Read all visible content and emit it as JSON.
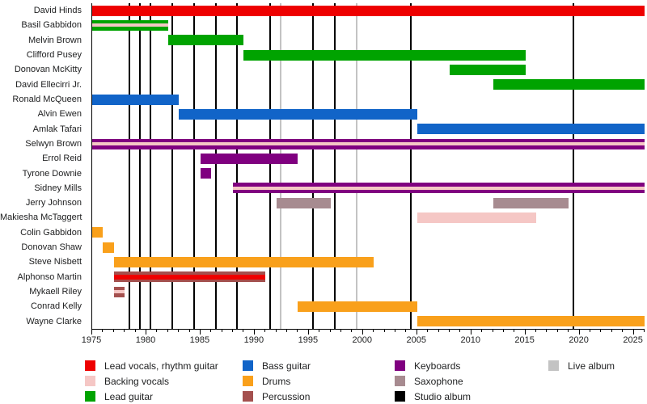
{
  "chart_data": {
    "type": "timeline",
    "description": "Band members timeline: colored bars show each member's tenure by instrument; vertical lines mark album releases.",
    "x_axis": {
      "start": 1975,
      "end": 2026,
      "tick_interval": 1,
      "tick_labels": [
        1975,
        1980,
        1985,
        1990,
        1995,
        2000,
        2005,
        2010,
        2015,
        2020,
        2025
      ]
    },
    "members": [
      {
        "name": "David Hinds",
        "role": "lead_vocals",
        "stints": [
          [
            1975,
            2026
          ]
        ]
      },
      {
        "name": "Basil Gabbidon",
        "role": "lead_guitar",
        "stripe": "backing_vocals",
        "stints": [
          [
            1975,
            1982
          ]
        ]
      },
      {
        "name": "Melvin Brown",
        "role": "lead_guitar",
        "stints": [
          [
            1982,
            1989
          ]
        ]
      },
      {
        "name": "Clifford Pusey",
        "role": "lead_guitar",
        "stints": [
          [
            1989,
            2015
          ]
        ]
      },
      {
        "name": "Donovan McKitty",
        "role": "lead_guitar",
        "stints": [
          [
            2008,
            2015
          ]
        ]
      },
      {
        "name": "David Ellecirri Jr.",
        "role": "lead_guitar",
        "stints": [
          [
            2012,
            2026
          ]
        ]
      },
      {
        "name": "Ronald McQueen",
        "role": "bass",
        "stints": [
          [
            1975,
            1983
          ]
        ]
      },
      {
        "name": "Alvin Ewen",
        "role": "bass",
        "stints": [
          [
            1983,
            2005
          ]
        ]
      },
      {
        "name": "Amlak Tafari",
        "role": "bass",
        "stints": [
          [
            2005,
            2026
          ]
        ]
      },
      {
        "name": "Selwyn Brown",
        "role": "keyboards",
        "stripe": "backing_vocals",
        "stints": [
          [
            1975,
            2026
          ]
        ]
      },
      {
        "name": "Errol Reid",
        "role": "keyboards",
        "stints": [
          [
            1985,
            1994
          ]
        ]
      },
      {
        "name": "Tyrone Downie",
        "role": "keyboards",
        "stints": [
          [
            1985,
            1986
          ]
        ]
      },
      {
        "name": "Sidney Mills",
        "role": "keyboards",
        "stripe": "backing_vocals",
        "stints": [
          [
            1988,
            2026
          ]
        ]
      },
      {
        "name": "Jerry Johnson",
        "role": "saxophone",
        "stints": [
          [
            1992,
            1997
          ],
          [
            2012,
            2019
          ]
        ]
      },
      {
        "name": "Makiesha McTaggert",
        "role": "backing_vocals",
        "stints": [
          [
            2005,
            2016
          ]
        ]
      },
      {
        "name": "Colin Gabbidon",
        "role": "drums",
        "stints": [
          [
            1975,
            1976
          ]
        ]
      },
      {
        "name": "Donovan Shaw",
        "role": "drums",
        "stints": [
          [
            1976,
            1977
          ]
        ]
      },
      {
        "name": "Steve Nisbett",
        "role": "drums",
        "stints": [
          [
            1977,
            2001
          ]
        ]
      },
      {
        "name": "Alphonso Martin",
        "role": "percussion",
        "stripe": "lead_vocals",
        "stripe_thick": true,
        "stints": [
          [
            1977,
            1991
          ]
        ]
      },
      {
        "name": "Mykaell Riley",
        "role": "percussion",
        "stripe": "backing_vocals",
        "stints": [
          [
            1977,
            1978
          ]
        ]
      },
      {
        "name": "Conrad Kelly",
        "role": "drums",
        "stints": [
          [
            1994,
            2005
          ]
        ]
      },
      {
        "name": "Wayne Clarke",
        "role": "drums",
        "stints": [
          [
            2005,
            2026
          ]
        ]
      }
    ],
    "albums": {
      "studio": [
        1978,
        1979,
        1980,
        1982,
        1984,
        1986,
        1988,
        1991,
        1995,
        1997,
        2004,
        2019
      ],
      "live": [
        1992,
        1999
      ]
    }
  },
  "roles": {
    "lead_vocals": {
      "label": "Lead vocals, rhythm guitar",
      "color": "#ee0000"
    },
    "backing_vocals": {
      "label": "Backing vocals",
      "color": "#f5c7c5"
    },
    "lead_guitar": {
      "label": "Lead guitar",
      "color": "#00a300"
    },
    "bass": {
      "label": "Bass guitar",
      "color": "#1164c8"
    },
    "drums": {
      "label": "Drums",
      "color": "#f9a01b"
    },
    "percussion": {
      "label": "Percussion",
      "color": "#a4504e"
    },
    "keyboards": {
      "label": "Keyboards",
      "color": "#800080"
    },
    "saxophone": {
      "label": "Saxophone",
      "color": "#a78b90"
    },
    "studio_album": {
      "label": "Studio album",
      "color": "#000000"
    },
    "live_album": {
      "label": "Live album",
      "color": "#c3c3c3"
    }
  },
  "legend": {
    "columns": [
      [
        "lead_vocals",
        "backing_vocals",
        "lead_guitar"
      ],
      [
        "bass",
        "drums",
        "percussion"
      ],
      [
        "keyboards",
        "saxophone",
        "studio_album"
      ],
      [
        "live_album"
      ]
    ]
  }
}
